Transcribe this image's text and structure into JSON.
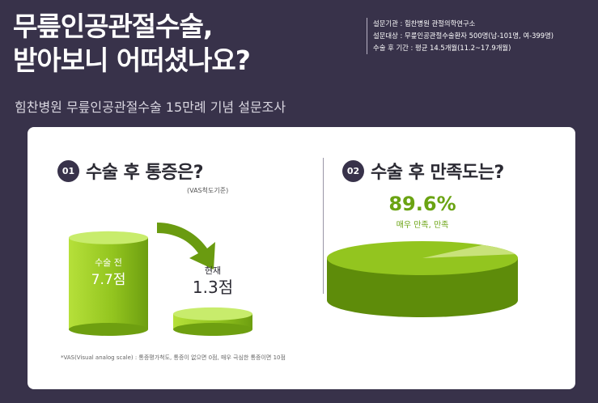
{
  "title_line1": "무릎인공관절수술,",
  "title_line2": "받아보니 어떠셨나요?",
  "subtitle": "힘찬병원 무릎인공관절수술 15만례 기념 설문조사",
  "info": [
    "설문기관 : 힘찬병원 관절의학연구소",
    "설문대상 : 무릎인공관절수술환자 500명(남-101명, 여-399명)",
    "수술 후 기간 : 평균 14.5개월(11.2~17.9개월)"
  ],
  "q1": {
    "num": "01",
    "text": "수술 후 통증은?",
    "note": "(VAS척도기준)"
  },
  "q2": {
    "num": "02",
    "text": "수술 후 만족도는?"
  },
  "footnote": "*VAS(Visual analog scale) : 통증평가척도, 통증이 없으면 0점, 매우 극심한 통증이면 10점",
  "colors": {
    "background": "#38324a",
    "accent": "#8dc21f",
    "accent_dark": "#5e8c0a",
    "text": "#2b2a33"
  },
  "chart_data": [
    {
      "type": "bar",
      "title": "수술 후 통증은?",
      "categories": [
        "수술 전",
        "현재"
      ],
      "values": [
        7.7,
        1.3
      ],
      "value_labels": [
        "7.7점",
        "1.3점"
      ],
      "ylim": [
        0,
        10
      ],
      "xlabel": "",
      "ylabel": "",
      "grid": false
    },
    {
      "type": "pie",
      "title": "수술 후 만족도는?",
      "values": [
        89.6,
        10.4
      ],
      "highlight_label": "89.6%",
      "highlight_caption": "매우 만족, 만족"
    }
  ]
}
